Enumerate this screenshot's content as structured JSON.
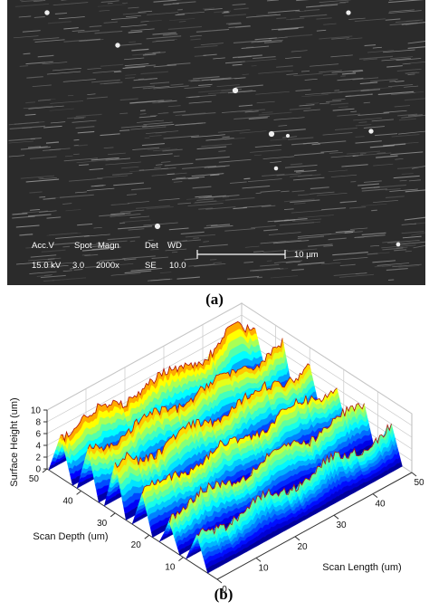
{
  "panels": [
    {
      "label": "(a)",
      "info_bar": {
        "headers": [
          "Acc.V",
          "Spot",
          "Magn",
          "Det",
          "WD"
        ],
        "values": [
          "15.0 kV",
          "3.0",
          "2000x",
          "SE",
          "10.0"
        ],
        "scale_bar": "10 µm"
      }
    },
    {
      "label": "(b)",
      "z_axis": {
        "label": "Surface Height (um)",
        "ticks": [
          0,
          2,
          4,
          6,
          8,
          10
        ]
      },
      "y_axis": {
        "label": "Scan Depth (um)",
        "ticks": [
          10,
          20,
          30,
          40,
          50
        ]
      },
      "x_axis": {
        "label": "Scan Length (um)",
        "ticks": [
          0,
          10,
          20,
          30,
          40,
          50
        ]
      }
    }
  ]
}
